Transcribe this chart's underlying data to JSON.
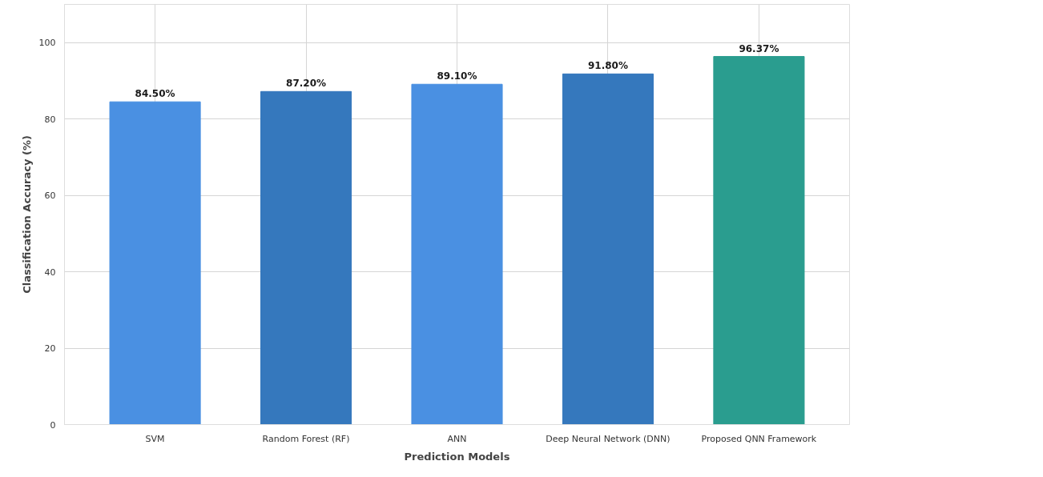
{
  "chart_data": {
    "type": "bar",
    "xlabel": "Prediction Models",
    "ylabel": "Classification Accuracy (%)",
    "categories": [
      "SVM",
      "Random Forest (RF)",
      "ANN",
      "Deep Neural Network (DNN)",
      "Proposed QNN Framework"
    ],
    "values": [
      84.5,
      87.2,
      89.1,
      91.8,
      96.37
    ],
    "colors": [
      "#4a90e2",
      "#3578bd",
      "#4a90e2",
      "#3578bd",
      "#2a9d8f"
    ],
    "value_labels": [
      "84.50%",
      "87.20%",
      "89.10%",
      "91.80%",
      "96.37%"
    ],
    "ylim": [
      0,
      110
    ],
    "yticks": [
      0,
      20,
      40,
      60,
      80,
      100
    ],
    "grid": true
  }
}
